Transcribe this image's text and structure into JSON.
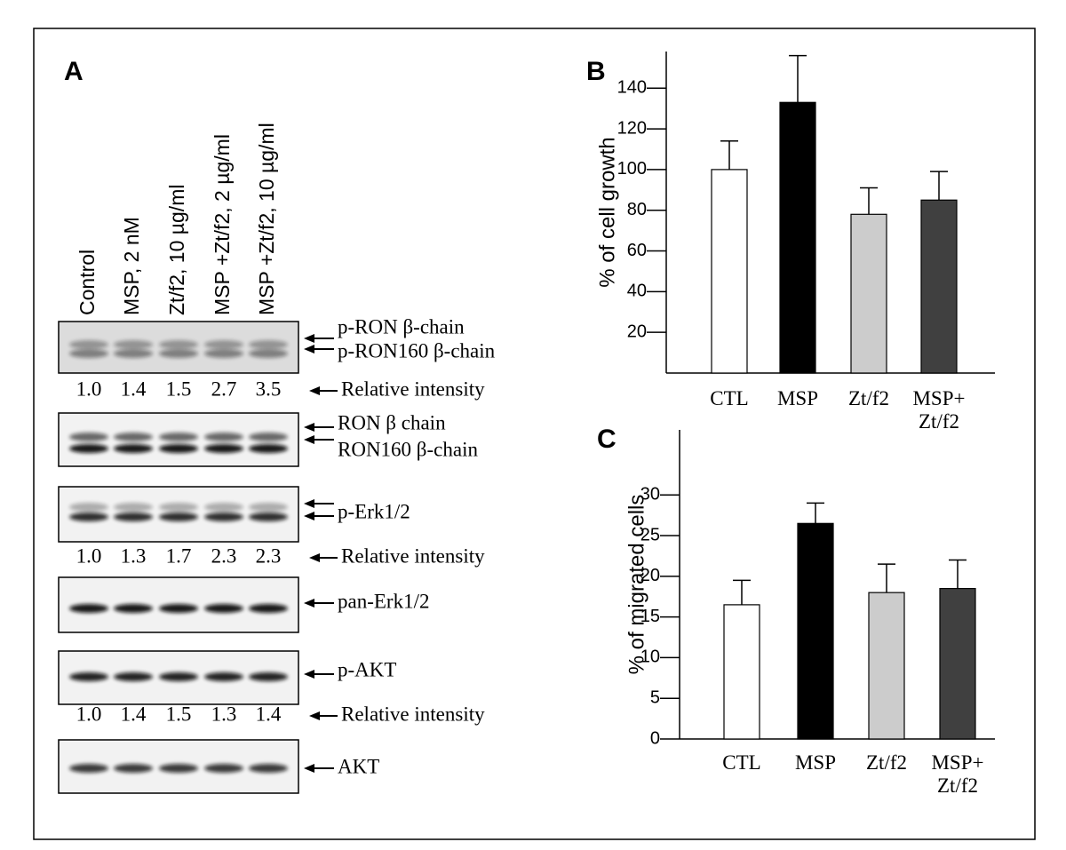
{
  "panel_a": {
    "label": "A",
    "lanes": [
      "Control",
      "MSP, 2 nM",
      "Zt/f2, 10 µg/ml",
      "MSP +Zt/f2, 2 µg/ml",
      "MSP +Zt/f2, 10 µg/ml"
    ],
    "intensity_label": "Relative intensity",
    "blots": [
      {
        "bands": [
          "p-RON β-chain",
          "p-RON160 β-chain"
        ],
        "intensity": [
          "1.0",
          "1.4",
          "1.5",
          "2.7",
          "3.5"
        ]
      },
      {
        "bands": [
          "RON β chain",
          "RON160 β-chain"
        ]
      },
      {
        "bands": [
          "p-Erk1/2"
        ],
        "intensity": [
          "1.0",
          "1.3",
          "1.7",
          "2.3",
          "2.3"
        ]
      },
      {
        "bands": [
          "pan-Erk1/2"
        ]
      },
      {
        "bands": [
          "p-AKT"
        ],
        "intensity": [
          "1.0",
          "1.4",
          "1.5",
          "1.3",
          "1.4"
        ]
      },
      {
        "bands": [
          "AKT"
        ]
      }
    ]
  },
  "chart_data": [
    {
      "type": "bar",
      "label": "B",
      "ylabel": "% of cell growth",
      "categories": [
        "CTL",
        "MSP",
        "Zt/f2",
        "MSP+ Zt/f2"
      ],
      "values": [
        100,
        133,
        78,
        85
      ],
      "errors": [
        14,
        23,
        13,
        14
      ],
      "colors": [
        "#ffffff",
        "#000000",
        "#cccccc",
        "#404040"
      ],
      "ylim": [
        0,
        158
      ],
      "yticks": [
        20,
        40,
        60,
        80,
        100,
        120,
        140
      ]
    },
    {
      "type": "bar",
      "label": "C",
      "ylabel": "% of migrated cells",
      "categories": [
        "CTL",
        "MSP",
        "Zt/f2",
        "MSP+ Zt/f2"
      ],
      "values": [
        16.5,
        26.5,
        18,
        18.5
      ],
      "errors": [
        3,
        2.5,
        3.5,
        3.5
      ],
      "colors": [
        "#ffffff",
        "#000000",
        "#cccccc",
        "#404040"
      ],
      "ylim": [
        0,
        38
      ],
      "yticks": [
        0,
        5,
        10,
        15,
        20,
        25,
        30
      ]
    }
  ]
}
